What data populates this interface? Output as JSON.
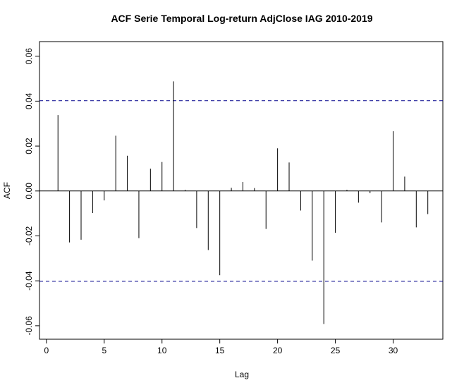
{
  "chart_data": {
    "type": "bar",
    "title": "ACF Serie Temporal Log-return AdjClose IAG 2010-2019",
    "xlabel": "Lag",
    "ylabel": "ACF",
    "xlim": [
      -0.6,
      34.3
    ],
    "ylim": [
      -0.066,
      0.0665
    ],
    "xticks": [
      0,
      5,
      10,
      15,
      20,
      25,
      30
    ],
    "xtick_labels": [
      "0",
      "5",
      "10",
      "15",
      "20",
      "25",
      "30"
    ],
    "yticks": [
      -0.06,
      -0.04,
      -0.02,
      0.0,
      0.02,
      0.04,
      0.06
    ],
    "ytick_labels": [
      "-0.06",
      "-0.04",
      "-0.02",
      "0.00",
      "0.02",
      "0.04",
      "0.06"
    ],
    "confidence_bounds": [
      0.0402,
      -0.0402
    ],
    "grid": false,
    "lags": [
      1,
      2,
      3,
      4,
      5,
      6,
      7,
      8,
      9,
      10,
      11,
      12,
      13,
      14,
      15,
      16,
      17,
      18,
      19,
      20,
      21,
      22,
      23,
      24,
      25,
      26,
      27,
      28,
      29,
      30,
      31,
      32,
      33
    ],
    "values": [
      0.0338,
      -0.0229,
      -0.0217,
      -0.0098,
      -0.0042,
      0.0246,
      0.0157,
      -0.021,
      0.0099,
      0.0129,
      0.0488,
      0.0005,
      -0.0165,
      -0.0263,
      -0.0375,
      0.0014,
      0.004,
      0.0013,
      -0.0169,
      0.019,
      0.0127,
      -0.0087,
      -0.031,
      -0.0592,
      -0.0186,
      0.0005,
      -0.0052,
      -0.001,
      -0.014,
      0.0266,
      0.0064,
      -0.0162,
      -0.0103
    ],
    "colors": {
      "bars": "#000000",
      "bounds": "#00008b",
      "axes": "#000000",
      "background": "#ffffff"
    }
  }
}
